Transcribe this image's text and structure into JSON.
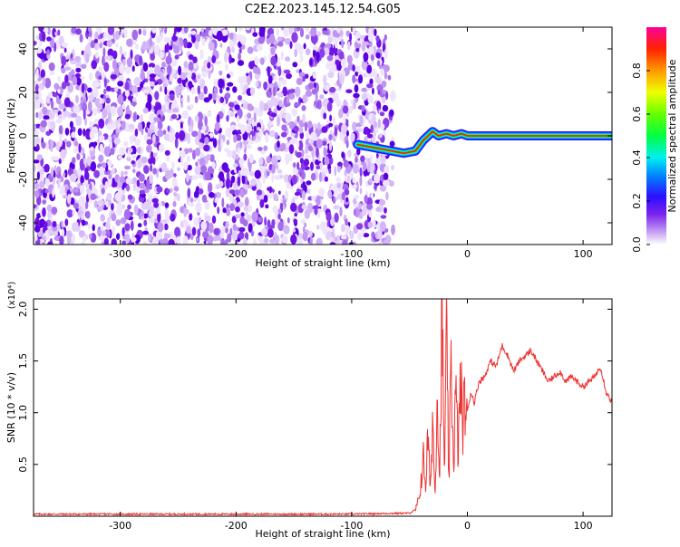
{
  "title": "C2E2.2023.145.12.54.G05",
  "colorbar": {
    "label": "Normalized spectral amplitude",
    "ticks": [
      "0.0",
      "0.2",
      "0.4",
      "0.6",
      "0.8"
    ],
    "tick_values": [
      0.0,
      0.2,
      0.4,
      0.6,
      0.8
    ],
    "range": [
      0,
      1
    ]
  },
  "chart_data": [
    {
      "type": "heatmap",
      "xlabel": "Height of straight line (km)",
      "ylabel": "Frequency (Hz)",
      "xlim": [
        -375,
        125
      ],
      "ylim": [
        -50,
        50
      ],
      "xticks": [
        -300,
        -200,
        -100,
        0,
        100
      ],
      "xtick_labels": [
        "-300",
        "-200",
        "-100",
        "0",
        "100"
      ],
      "yticks": [
        -40,
        -20,
        0,
        20,
        40
      ],
      "ytick_labels": [
        "-40",
        "-20",
        "0",
        "20",
        "40"
      ],
      "noise_region_x": [
        -375,
        -70
      ],
      "signal_trace": {
        "x": [
          -95,
          -85,
          -75,
          -65,
          -55,
          -45,
          -38,
          -30,
          -25,
          -18,
          -12,
          -5,
          0,
          10,
          50,
          100,
          125
        ],
        "y": [
          -4,
          -5,
          -6,
          -7,
          -8,
          -7,
          -2,
          2,
          0,
          1,
          0,
          1,
          0,
          0,
          0,
          0,
          0
        ]
      }
    },
    {
      "type": "line",
      "xlabel": "Height of straight line (km)",
      "ylabel": "SNR (10 * v/v)",
      "yscale_label": "(x10⁴)",
      "xlim": [
        -375,
        125
      ],
      "ylim": [
        0,
        2.1
      ],
      "xticks": [
        -300,
        -200,
        -100,
        0,
        100
      ],
      "xtick_labels": [
        "-300",
        "-200",
        "-100",
        "0",
        "100"
      ],
      "yticks": [
        0.5,
        1.0,
        1.5,
        2.0
      ],
      "ytick_labels": [
        "0.5",
        "1.0",
        "1.5",
        "2.0"
      ],
      "color": "#ee3333",
      "series": [
        {
          "x": [
            -375,
            -300,
            -200,
            -100,
            -50,
            -45,
            -42,
            -40,
            -38,
            -36,
            -34,
            -32,
            -30,
            -28,
            -26,
            -24,
            -22,
            -20,
            -18,
            -16,
            -14,
            -12,
            -10,
            -8,
            -6,
            -4,
            -2,
            0,
            3,
            6,
            10,
            15,
            20,
            25,
            30,
            35,
            40,
            45,
            50,
            55,
            60,
            65,
            70,
            75,
            80,
            85,
            90,
            95,
            100,
            105,
            110,
            115,
            118,
            120,
            125
          ],
          "y": [
            0.02,
            0.02,
            0.02,
            0.02,
            0.03,
            0.06,
            0.15,
            0.35,
            0.55,
            0.3,
            0.8,
            0.2,
            1.0,
            0.15,
            1.3,
            0.3,
            2.1,
            0.4,
            1.7,
            0.3,
            1.5,
            0.5,
            1.2,
            0.6,
            1.3,
            0.9,
            1.1,
            1.0,
            1.2,
            1.1,
            1.3,
            1.35,
            1.5,
            1.45,
            1.65,
            1.55,
            1.4,
            1.5,
            1.55,
            1.6,
            1.5,
            1.4,
            1.3,
            1.35,
            1.4,
            1.3,
            1.35,
            1.3,
            1.25,
            1.3,
            1.35,
            1.45,
            1.3,
            1.2,
            1.1
          ]
        }
      ]
    }
  ]
}
